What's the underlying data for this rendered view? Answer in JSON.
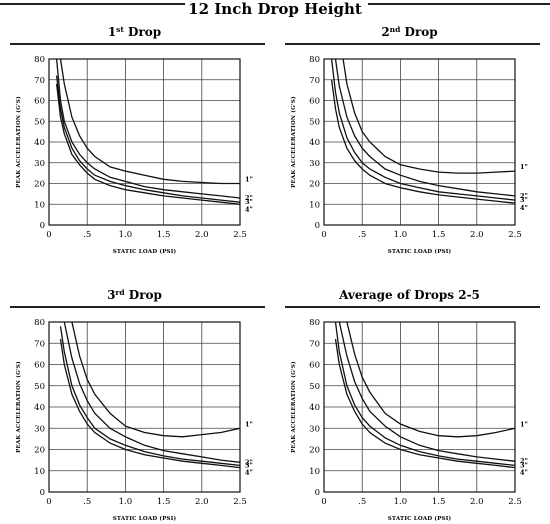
{
  "page": {
    "title": "12 Inch Drop Height"
  },
  "chart_data": [
    {
      "type": "line",
      "title": "1st Drop",
      "title_base": "1",
      "title_sup": "st",
      "title_rest": " Drop",
      "xlabel": "STATIC LOAD (PSI)",
      "ylabel": "PEAK ACCELERATION (G'S)",
      "xlim": [
        0,
        2.5
      ],
      "ylim": [
        0,
        80
      ],
      "x_ticks": [
        0,
        0.5,
        1.0,
        1.5,
        2.0,
        2.5
      ],
      "x_tick_labels": [
        "0",
        ".5",
        "1.0",
        "1.5",
        "2.0",
        "2.5"
      ],
      "y_ticks": [
        0,
        10,
        20,
        30,
        40,
        50,
        60,
        70,
        80
      ],
      "y_tick_labels": [
        "0",
        "10",
        "20",
        "30",
        "40",
        "50",
        "60",
        "70",
        "80"
      ],
      "grid": true,
      "series": [
        {
          "name": "1\"",
          "x": [
            0.15,
            0.2,
            0.3,
            0.4,
            0.5,
            0.6,
            0.8,
            1.0,
            1.25,
            1.5,
            1.75,
            2.0,
            2.25,
            2.5
          ],
          "y": [
            80,
            68,
            52,
            43,
            37,
            33,
            28,
            26,
            24,
            22,
            21,
            20.5,
            20,
            20
          ]
        },
        {
          "name": "2\"",
          "x": [
            0.1,
            0.15,
            0.2,
            0.3,
            0.4,
            0.5,
            0.6,
            0.8,
            1.0,
            1.25,
            1.5,
            1.75,
            2.0,
            2.25,
            2.5
          ],
          "y": [
            80,
            60,
            50,
            40,
            34,
            30,
            27,
            23,
            21,
            18.5,
            17,
            16,
            15,
            14,
            13
          ]
        },
        {
          "name": "3\"",
          "x": [
            0.1,
            0.15,
            0.2,
            0.3,
            0.4,
            0.5,
            0.6,
            0.8,
            1.0,
            1.25,
            1.5,
            1.75,
            2.0,
            2.25,
            2.5
          ],
          "y": [
            72,
            56,
            47,
            37,
            31,
            27,
            24,
            21,
            19,
            17,
            15.5,
            14,
            13,
            12,
            11
          ]
        },
        {
          "name": "4\"",
          "x": [
            0.1,
            0.15,
            0.2,
            0.3,
            0.4,
            0.5,
            0.6,
            0.8,
            1.0,
            1.25,
            1.5,
            1.75,
            2.0,
            2.25,
            2.5
          ],
          "y": [
            68,
            52,
            44,
            34,
            29,
            25,
            22,
            19,
            17,
            15.5,
            14,
            13,
            12,
            11,
            10
          ]
        }
      ]
    },
    {
      "type": "line",
      "title": "2nd Drop",
      "title_base": "2",
      "title_sup": "nd",
      "title_rest": " Drop",
      "xlabel": "STATIC LOAD (PSI)",
      "ylabel": "PEAK ACCELERATION (G'S)",
      "xlim": [
        0,
        2.5
      ],
      "ylim": [
        0,
        80
      ],
      "x_ticks": [
        0,
        0.5,
        1.0,
        1.5,
        2.0,
        2.5
      ],
      "x_tick_labels": [
        "0",
        ".5",
        "1.0",
        "1.5",
        "2.0",
        "2.5"
      ],
      "y_ticks": [
        0,
        10,
        20,
        30,
        40,
        50,
        60,
        70,
        80
      ],
      "y_tick_labels": [
        "0",
        "10",
        "20",
        "30",
        "40",
        "50",
        "60",
        "70",
        "80"
      ],
      "grid": true,
      "series": [
        {
          "name": "1\"",
          "x": [
            0.25,
            0.3,
            0.4,
            0.5,
            0.6,
            0.8,
            1.0,
            1.25,
            1.5,
            1.75,
            2.0,
            2.25,
            2.5
          ],
          "y": [
            80,
            68,
            54,
            45,
            40,
            33,
            29,
            27,
            25.5,
            25,
            25,
            25.5,
            26
          ]
        },
        {
          "name": "2\"",
          "x": [
            0.15,
            0.2,
            0.3,
            0.4,
            0.5,
            0.6,
            0.8,
            1.0,
            1.25,
            1.5,
            1.75,
            2.0,
            2.25,
            2.5
          ],
          "y": [
            80,
            67,
            52,
            43,
            37,
            33,
            27,
            24,
            21,
            19,
            17.5,
            16,
            15,
            14
          ]
        },
        {
          "name": "3\"",
          "x": [
            0.1,
            0.15,
            0.2,
            0.3,
            0.4,
            0.5,
            0.6,
            0.8,
            1.0,
            1.25,
            1.5,
            1.75,
            2.0,
            2.25,
            2.5
          ],
          "y": [
            80,
            64,
            54,
            42,
            35,
            30,
            27,
            23,
            20,
            18,
            16,
            15,
            14,
            13,
            12
          ]
        },
        {
          "name": "4\"",
          "x": [
            0.1,
            0.15,
            0.2,
            0.3,
            0.4,
            0.5,
            0.6,
            0.8,
            1.0,
            1.25,
            1.5,
            1.75,
            2.0,
            2.25,
            2.5
          ],
          "y": [
            70,
            56,
            47,
            37,
            31,
            27,
            24,
            20,
            18,
            16,
            14.5,
            13.5,
            12.5,
            11.5,
            10.5
          ]
        }
      ]
    },
    {
      "type": "line",
      "title": "3rd Drop",
      "title_base": "3",
      "title_sup": "rd",
      "title_rest": " Drop",
      "xlabel": "STATIC LOAD (PSI)",
      "ylabel": "PEAK ACCELERATION (G'S)",
      "xlim": [
        0,
        2.5
      ],
      "ylim": [
        0,
        80
      ],
      "x_ticks": [
        0,
        0.5,
        1.0,
        1.5,
        2.0,
        2.5
      ],
      "x_tick_labels": [
        "0",
        ".5",
        "1.0",
        "1.5",
        "2.0",
        "2.5"
      ],
      "y_ticks": [
        0,
        10,
        20,
        30,
        40,
        50,
        60,
        70,
        80
      ],
      "y_tick_labels": [
        "0",
        "10",
        "20",
        "30",
        "40",
        "50",
        "60",
        "70",
        "80"
      ],
      "grid": true,
      "series": [
        {
          "name": "1\"",
          "x": [
            0.3,
            0.4,
            0.5,
            0.6,
            0.8,
            1.0,
            1.25,
            1.5,
            1.75,
            2.0,
            2.25,
            2.5
          ],
          "y": [
            80,
            64,
            53,
            46,
            37,
            31,
            28,
            26.5,
            26,
            27,
            28,
            30
          ]
        },
        {
          "name": "2\"",
          "x": [
            0.2,
            0.3,
            0.4,
            0.5,
            0.6,
            0.8,
            1.0,
            1.25,
            1.5,
            1.75,
            2.0,
            2.25,
            2.5
          ],
          "y": [
            80,
            63,
            51,
            43,
            37,
            30,
            26,
            22,
            19.5,
            18,
            16.5,
            15,
            14
          ]
        },
        {
          "name": "3\"",
          "x": [
            0.15,
            0.2,
            0.3,
            0.4,
            0.5,
            0.6,
            0.8,
            1.0,
            1.25,
            1.5,
            1.75,
            2.0,
            2.25,
            2.5
          ],
          "y": [
            78,
            66,
            50,
            41,
            35,
            30,
            25,
            22,
            19,
            17,
            15.5,
            14.5,
            13.5,
            12.5
          ]
        },
        {
          "name": "4\"",
          "x": [
            0.15,
            0.2,
            0.3,
            0.4,
            0.5,
            0.6,
            0.8,
            1.0,
            1.25,
            1.5,
            1.75,
            2.0,
            2.25,
            2.5
          ],
          "y": [
            72,
            60,
            46,
            38,
            32,
            28,
            23,
            20,
            17.5,
            16,
            14.5,
            13.5,
            12.5,
            11.5
          ]
        }
      ]
    },
    {
      "type": "line",
      "title": "Average of Drops 2-5",
      "title_base": "Average of Drops 2-5",
      "title_sup": "",
      "title_rest": "",
      "xlabel": "STATIC LOAD (PSI)",
      "ylabel": "PEAK ACCELERATION (G'S)",
      "xlim": [
        0,
        2.5
      ],
      "ylim": [
        0,
        80
      ],
      "x_ticks": [
        0,
        0.5,
        1.0,
        1.5,
        2.0,
        2.5
      ],
      "x_tick_labels": [
        "0",
        ".5",
        "1.0",
        "1.5",
        "2.0",
        "2.5"
      ],
      "y_ticks": [
        0,
        10,
        20,
        30,
        40,
        50,
        60,
        70,
        80
      ],
      "y_tick_labels": [
        "0",
        "10",
        "20",
        "30",
        "40",
        "50",
        "60",
        "70",
        "80"
      ],
      "grid": true,
      "series": [
        {
          "name": "1\"",
          "x": [
            0.3,
            0.4,
            0.5,
            0.6,
            0.8,
            1.0,
            1.25,
            1.5,
            1.75,
            2.0,
            2.25,
            2.5
          ],
          "y": [
            80,
            65,
            54,
            47,
            37,
            32,
            28.5,
            26.5,
            26,
            26.5,
            28,
            30
          ]
        },
        {
          "name": "2\"",
          "x": [
            0.2,
            0.3,
            0.4,
            0.5,
            0.6,
            0.8,
            1.0,
            1.25,
            1.5,
            1.75,
            2.0,
            2.25,
            2.5
          ],
          "y": [
            80,
            64,
            52,
            44,
            38,
            31,
            26,
            22,
            19.5,
            18,
            16.5,
            15.5,
            14.5
          ]
        },
        {
          "name": "3\"",
          "x": [
            0.15,
            0.2,
            0.3,
            0.4,
            0.5,
            0.6,
            0.8,
            1.0,
            1.25,
            1.5,
            1.75,
            2.0,
            2.25,
            2.5
          ],
          "y": [
            80,
            66,
            50,
            41,
            35,
            31,
            25.5,
            22,
            19,
            17,
            15.5,
            14.5,
            13.5,
            12.5
          ]
        },
        {
          "name": "4\"",
          "x": [
            0.15,
            0.2,
            0.3,
            0.4,
            0.5,
            0.6,
            0.8,
            1.0,
            1.25,
            1.5,
            1.75,
            2.0,
            2.25,
            2.5
          ],
          "y": [
            72,
            60,
            46,
            38,
            32,
            28,
            23,
            20,
            17.5,
            16,
            14.5,
            13.5,
            12.5,
            11.5
          ]
        }
      ]
    }
  ]
}
